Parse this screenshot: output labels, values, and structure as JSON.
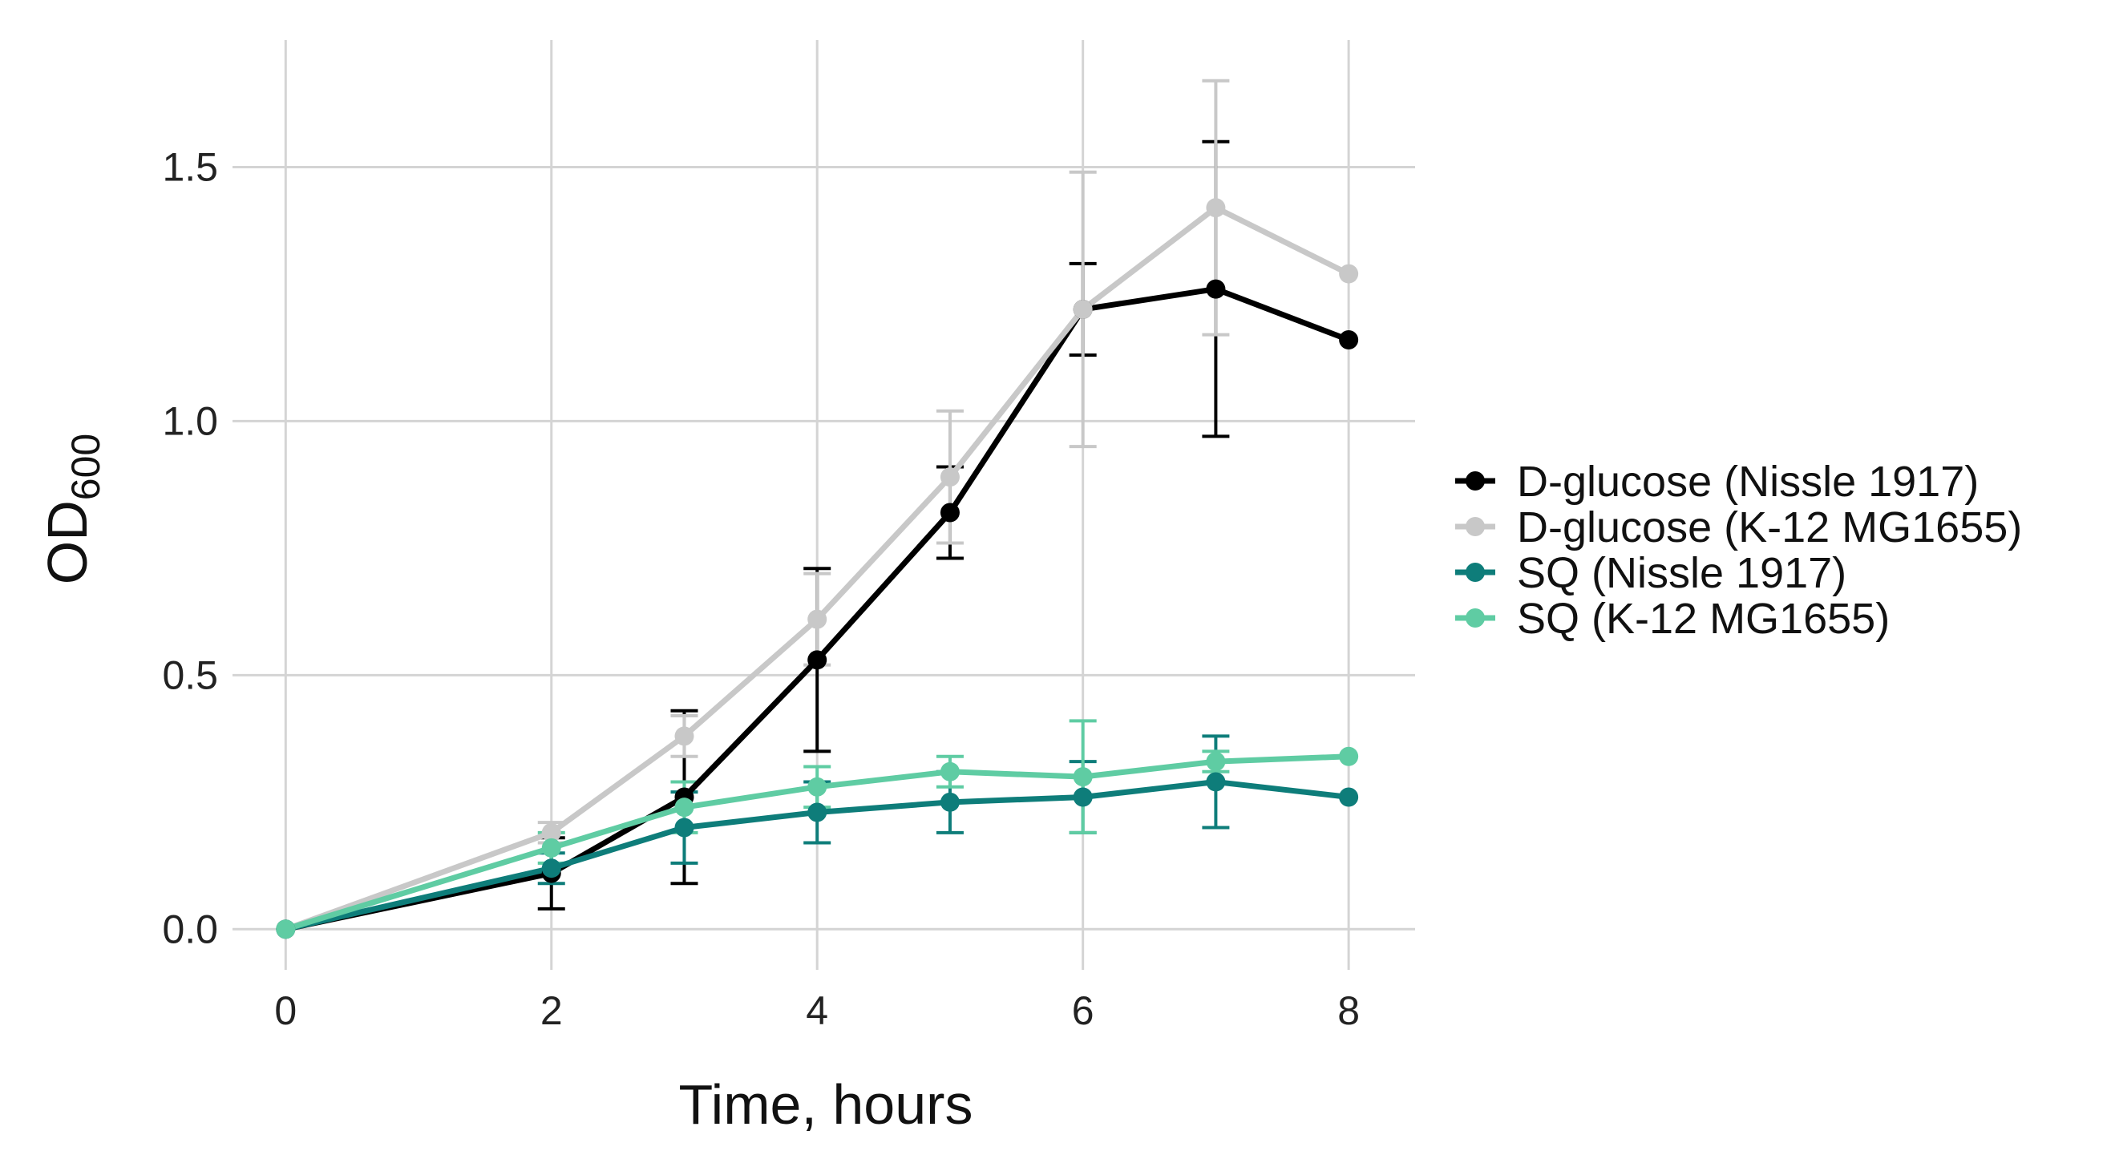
{
  "chart_data": {
    "type": "line",
    "title": "",
    "xlabel": "Time, hours",
    "ylabel": "OD",
    "ylabel_subscript": "600",
    "xlim": [
      -0.4,
      8.5
    ],
    "ylim": [
      -0.08,
      1.75
    ],
    "x_ticks": [
      0,
      2,
      4,
      6,
      8
    ],
    "x_tick_labels": [
      "0",
      "2",
      "4",
      "6",
      "8"
    ],
    "y_ticks": [
      0.0,
      0.5,
      1.0,
      1.5
    ],
    "y_tick_labels": [
      "0.0",
      "0.5",
      "1.0",
      "1.5"
    ],
    "grid": true,
    "legend_position": "right",
    "x": [
      0,
      2,
      3,
      4,
      5,
      6,
      7,
      8
    ],
    "series": [
      {
        "name": "D-glucose (Nissle 1917)",
        "color": "#000000",
        "values": [
          0.0,
          0.11,
          0.26,
          0.53,
          0.82,
          1.22,
          1.26,
          1.16
        ],
        "errors": [
          0.0,
          0.07,
          0.17,
          0.18,
          0.09,
          0.09,
          0.29,
          0.0
        ]
      },
      {
        "name": "D-glucose (K-12 MG1655)",
        "color": "#c8c8c8",
        "values": [
          0.0,
          0.19,
          0.38,
          0.61,
          0.89,
          1.22,
          1.42,
          1.29
        ],
        "errors": [
          0.0,
          0.02,
          0.04,
          0.09,
          0.13,
          0.27,
          0.25,
          0.0
        ]
      },
      {
        "name": "SQ (Nissle 1917)",
        "color": "#0e7d7a",
        "values": [
          0.0,
          0.12,
          0.2,
          0.23,
          0.25,
          0.26,
          0.29,
          0.26
        ],
        "errors": [
          0.0,
          0.03,
          0.07,
          0.06,
          0.06,
          0.07,
          0.09,
          0.0
        ]
      },
      {
        "name": "SQ (K-12 MG1655)",
        "color": "#5fcca3",
        "values": [
          0.0,
          0.16,
          0.24,
          0.28,
          0.31,
          0.3,
          0.33,
          0.34
        ],
        "errors": [
          0.0,
          0.03,
          0.05,
          0.04,
          0.03,
          0.11,
          0.02,
          0.0
        ]
      }
    ]
  }
}
